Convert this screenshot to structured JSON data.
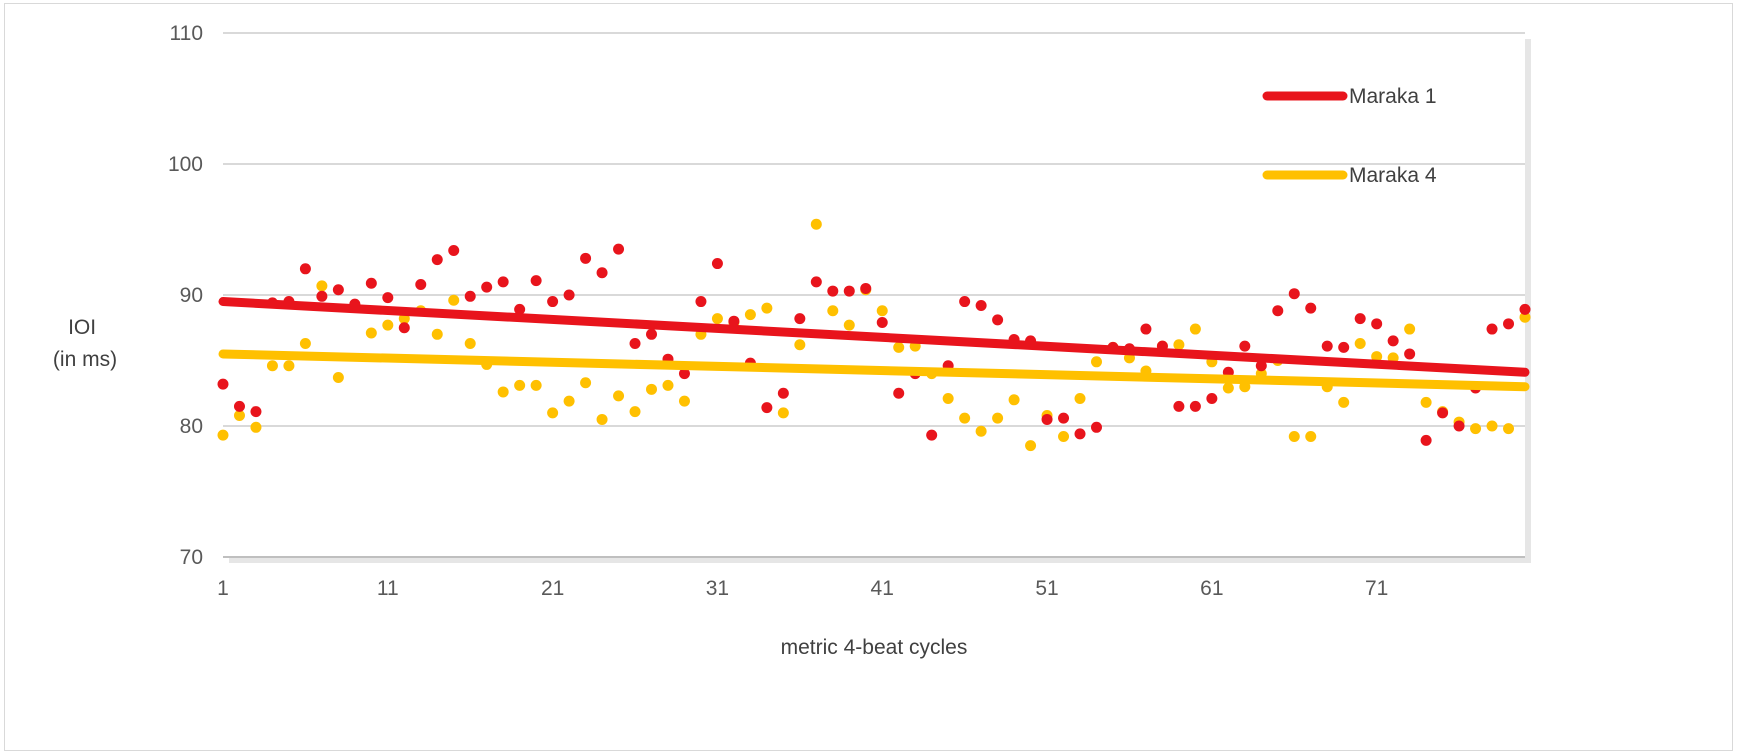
{
  "chart_data": {
    "type": "scatter",
    "xlabel": "metric 4-beat cycles",
    "ylabel": [
      "IOI",
      "(in ms)"
    ],
    "xlim": [
      1,
      80
    ],
    "ylim": [
      70,
      110
    ],
    "yticks": [
      70,
      80,
      90,
      100,
      110
    ],
    "xticks": [
      1,
      11,
      21,
      31,
      41,
      51,
      61,
      71
    ],
    "grid": true,
    "legend_position": "top-right",
    "series": [
      {
        "name": "Maraka 1",
        "color": "#e8141c",
        "trendline": [
          89.5,
          84.1
        ],
        "x": [
          1,
          2,
          3,
          4,
          5,
          6,
          7,
          8,
          9,
          10,
          11,
          12,
          13,
          14,
          15,
          16,
          17,
          18,
          19,
          20,
          21,
          22,
          23,
          24,
          25,
          26,
          27,
          28,
          29,
          30,
          31,
          32,
          33,
          34,
          35,
          36,
          37,
          38,
          39,
          40,
          41,
          42,
          43,
          44,
          45,
          46,
          47,
          48,
          49,
          50,
          51,
          52,
          53,
          54,
          55,
          56,
          57,
          58,
          59,
          60,
          61,
          62,
          63,
          64,
          65,
          66,
          67,
          68,
          69,
          70,
          71,
          72,
          73,
          74,
          75,
          76,
          77,
          78,
          79,
          80
        ],
        "y": [
          83.2,
          81.5,
          81.1,
          89.4,
          89.5,
          92.0,
          89.9,
          90.4,
          89.3,
          90.9,
          89.8,
          87.5,
          90.8,
          92.7,
          93.4,
          89.9,
          90.6,
          91.0,
          88.9,
          91.1,
          89.5,
          90.0,
          92.8,
          91.7,
          93.5,
          86.3,
          87.0,
          85.1,
          84.0,
          89.5,
          92.4,
          88.0,
          84.8,
          81.4,
          82.5,
          88.2,
          91.0,
          90.3,
          90.3,
          90.5,
          87.9,
          82.5,
          84.0,
          79.3,
          84.6,
          89.5,
          89.2,
          88.1,
          86.6,
          86.5,
          80.5,
          80.6,
          79.4,
          79.9,
          86.0,
          85.9,
          87.4,
          86.1,
          81.5,
          81.5,
          82.1,
          84.1,
          86.1,
          84.6,
          88.8,
          90.1,
          89.0,
          86.1,
          86.0,
          88.2,
          87.8,
          86.5,
          85.5,
          78.9,
          81.0,
          80.0,
          82.9,
          87.4,
          87.8,
          88.9
        ]
      },
      {
        "name": "Maraka 4",
        "color": "#ffc000",
        "trendline": [
          85.5,
          83.0
        ],
        "x": [
          1,
          2,
          3,
          4,
          5,
          6,
          7,
          8,
          9,
          10,
          11,
          12,
          13,
          14,
          15,
          16,
          17,
          18,
          19,
          20,
          21,
          22,
          23,
          24,
          25,
          26,
          27,
          28,
          29,
          30,
          31,
          32,
          33,
          34,
          35,
          36,
          37,
          38,
          39,
          40,
          41,
          42,
          43,
          44,
          45,
          46,
          47,
          48,
          49,
          50,
          51,
          52,
          53,
          54,
          55,
          56,
          57,
          58,
          59,
          60,
          61,
          62,
          63,
          64,
          65,
          66,
          67,
          68,
          69,
          70,
          71,
          72,
          73,
          74,
          75,
          76,
          77,
          78,
          79,
          80
        ],
        "y": [
          79.3,
          80.8,
          79.9,
          84.6,
          84.6,
          86.3,
          90.7,
          83.7,
          89.2,
          87.1,
          87.7,
          88.2,
          88.8,
          87.0,
          89.6,
          86.3,
          84.7,
          82.6,
          83.1,
          83.1,
          81.0,
          81.9,
          83.3,
          80.5,
          82.3,
          81.1,
          82.8,
          83.1,
          81.9,
          87.0,
          88.2,
          87.9,
          88.5,
          89.0,
          81.0,
          86.2,
          95.4,
          88.8,
          87.7,
          90.4,
          88.8,
          86.0,
          86.1,
          84.0,
          82.1,
          80.6,
          79.6,
          80.6,
          82.0,
          78.5,
          80.8,
          79.2,
          82.1,
          84.9,
          86.0,
          85.2,
          84.2,
          86.1,
          86.2,
          87.4,
          84.9,
          82.9,
          83.0,
          84.0,
          85.0,
          79.2,
          79.2,
          83.0,
          81.8,
          86.3,
          85.3,
          85.2,
          87.4,
          81.8,
          81.1,
          80.3,
          79.8,
          80.0,
          79.8,
          88.3
        ]
      }
    ]
  }
}
